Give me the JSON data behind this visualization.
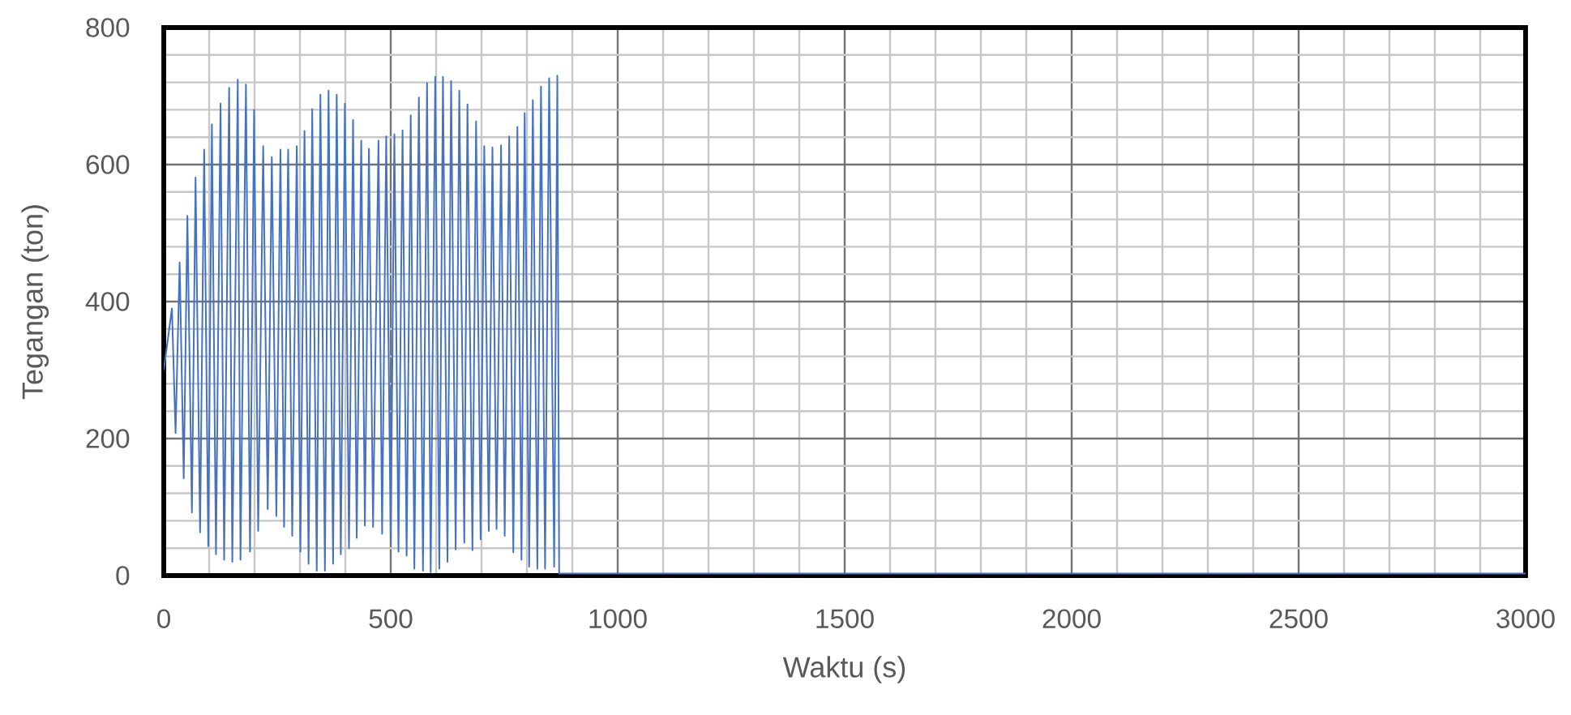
{
  "chart_data": {
    "type": "line",
    "xlabel": "Waktu (s)",
    "ylabel": "Tegangan (ton)",
    "xlim": [
      0,
      3000
    ],
    "ylim": [
      0,
      800
    ],
    "xticks": [
      0,
      500,
      1000,
      1500,
      2000,
      2500,
      3000
    ],
    "yticks": [
      0,
      200,
      400,
      600,
      800
    ],
    "grid": true,
    "marker": "none",
    "line_style": "solid",
    "series": [
      {
        "color": "#4472c4",
        "x": [
          0,
          18,
          26,
          35,
          44,
          52,
          62,
          70,
          80,
          89,
          98,
          106,
          115,
          125,
          133,
          144,
          151,
          163,
          169,
          181,
          190,
          199,
          208,
          219,
          229,
          238,
          248,
          257,
          265,
          274,
          283,
          293,
          301,
          310,
          319,
          327,
          337,
          345,
          355,
          363,
          373,
          381,
          390,
          399,
          408,
          417,
          425,
          435,
          443,
          452,
          461,
          473,
          481,
          490,
          500,
          508,
          517,
          526,
          535,
          544,
          552,
          562,
          571,
          580,
          588,
          598,
          607,
          615,
          625,
          633,
          643,
          651,
          662,
          669,
          680,
          688,
          698,
          706,
          716,
          724,
          733,
          743,
          751,
          761,
          770,
          779,
          788,
          795,
          805,
          813,
          823,
          831,
          840,
          849,
          860,
          867,
          871,
          3000
        ],
        "values": [
          300,
          390,
          208,
          457,
          142,
          525,
          92,
          581,
          63,
          622,
          43,
          659,
          31,
          689,
          23,
          712,
          20,
          724,
          23,
          717,
          35,
          680,
          65,
          627,
          97,
          611,
          87,
          622,
          71,
          622,
          58,
          627,
          35,
          649,
          17,
          681,
          7,
          702,
          7,
          708,
          17,
          702,
          31,
          689,
          40,
          665,
          55,
          635,
          73,
          623,
          71,
          635,
          61,
          641,
          48,
          644,
          35,
          650,
          29,
          672,
          10,
          698,
          7,
          719,
          5,
          728,
          10,
          728,
          20,
          722,
          38,
          708,
          48,
          688,
          37,
          663,
          53,
          627,
          65,
          625,
          68,
          628,
          58,
          641,
          34,
          655,
          23,
          675,
          13,
          694,
          10,
          714,
          10,
          726,
          13,
          730,
          3,
          3
        ]
      }
    ]
  }
}
